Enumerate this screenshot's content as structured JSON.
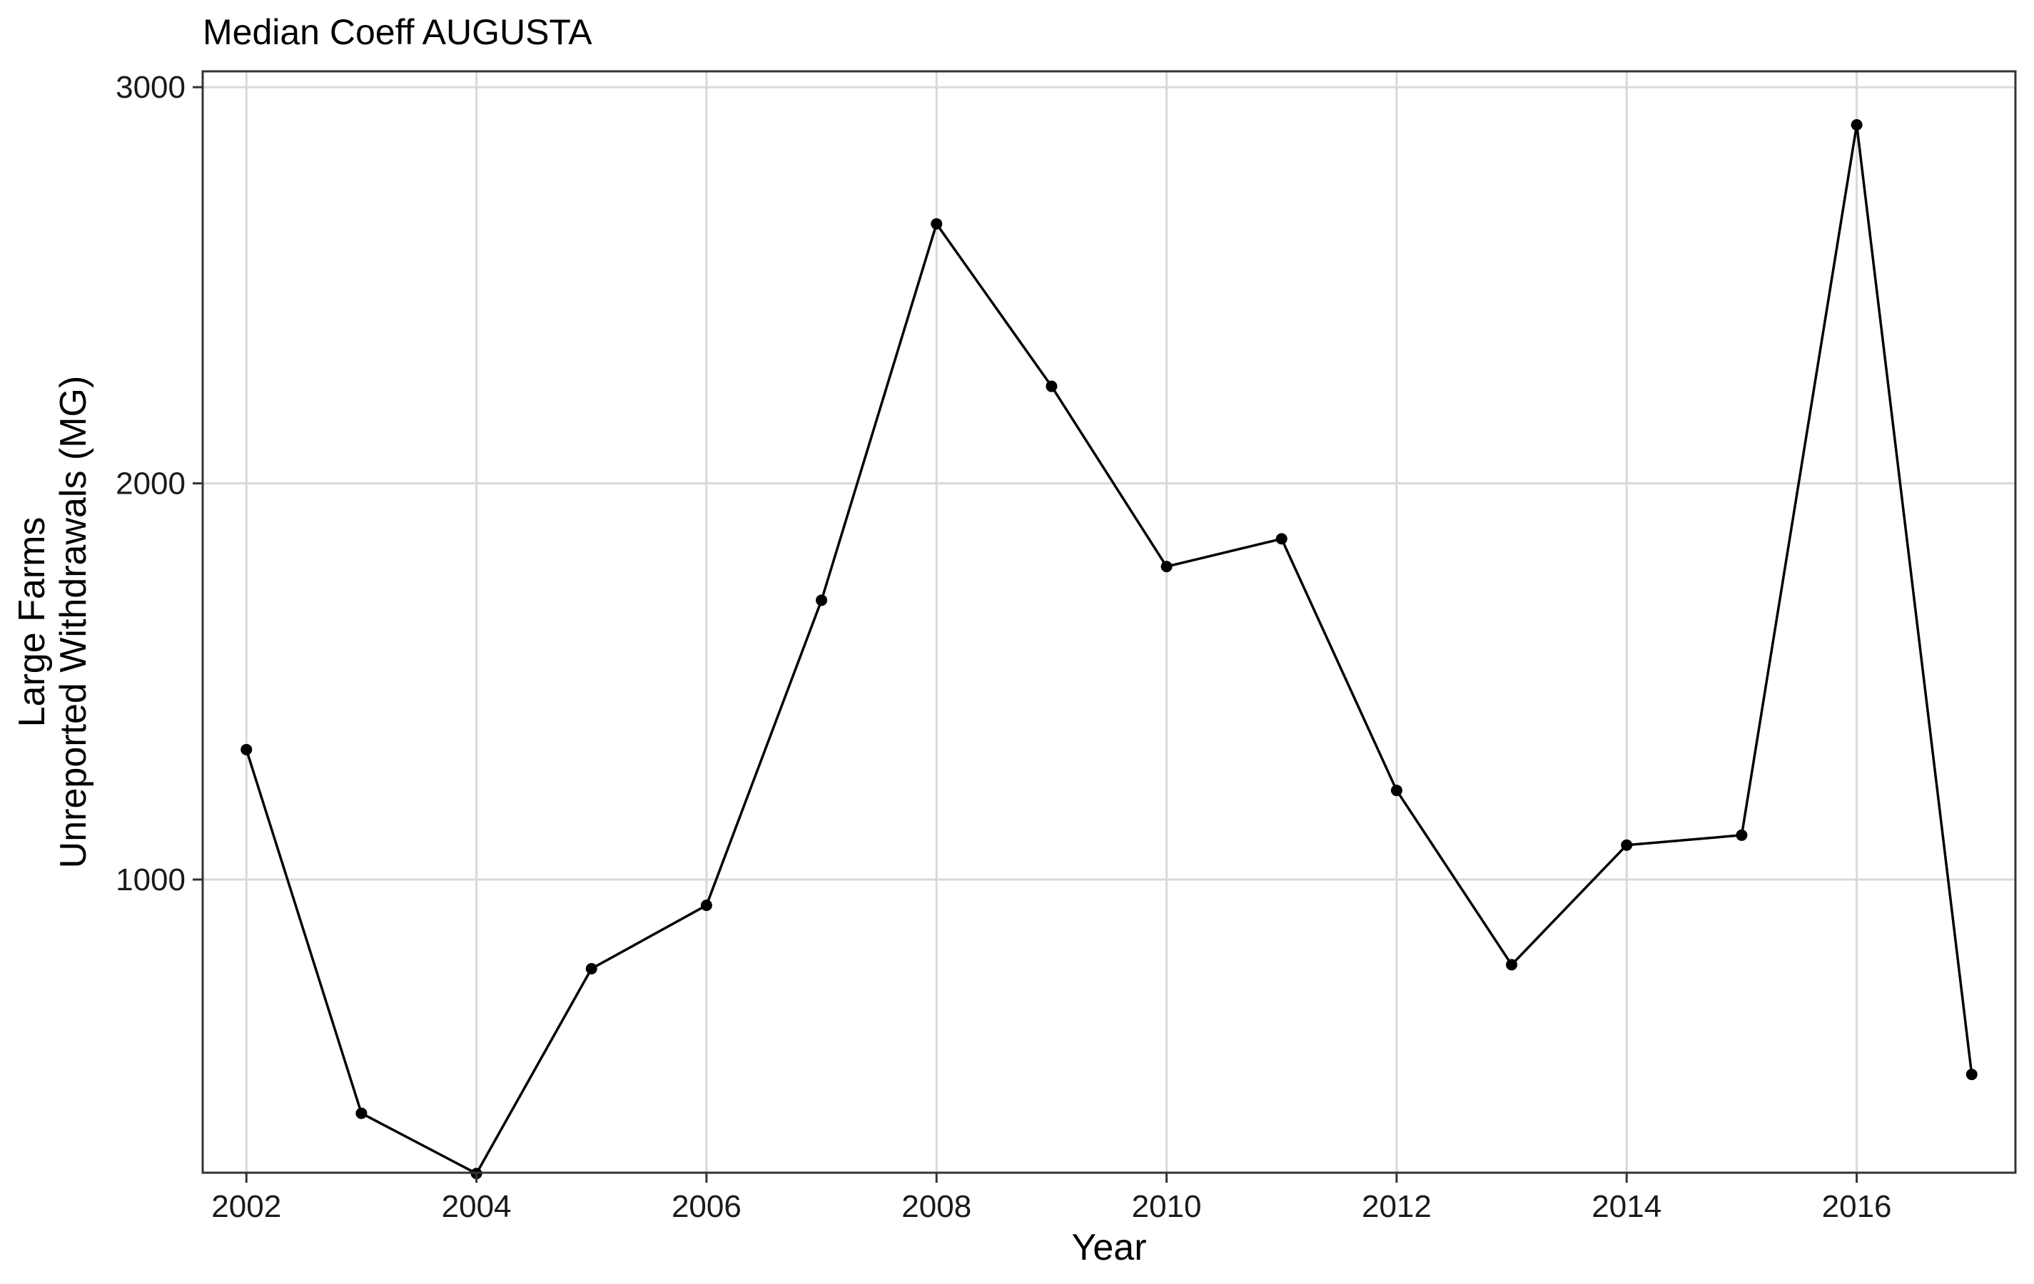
{
  "chart_data": {
    "type": "line",
    "title": "Median Coeff AUGUSTA",
    "xlabel": "Year",
    "ylabel_line1": "Large Farms",
    "ylabel_line2": "Unreported Withdrawals (MG)",
    "xlim": [
      2001.62,
      2017.38
    ],
    "ylim": [
      260,
      3040
    ],
    "x_ticks": [
      2002,
      2004,
      2006,
      2008,
      2010,
      2012,
      2014,
      2016
    ],
    "y_ticks": [
      1000,
      2000,
      3000
    ],
    "grid": true,
    "colors": {
      "line": "#000000",
      "grid": "#d9d9d9",
      "panel": "#333333"
    },
    "series": [
      {
        "x": [
          2002,
          2003,
          2004,
          2005,
          2006,
          2007,
          2008,
          2009,
          2010,
          2011,
          2012,
          2013,
          2014,
          2015,
          2016,
          2017
        ],
        "values": [
          1328,
          410,
          258,
          775,
          935,
          1705,
          2655,
          2245,
          1790,
          1860,
          1225,
          785,
          1087,
          1112,
          2905,
          508
        ]
      }
    ]
  }
}
